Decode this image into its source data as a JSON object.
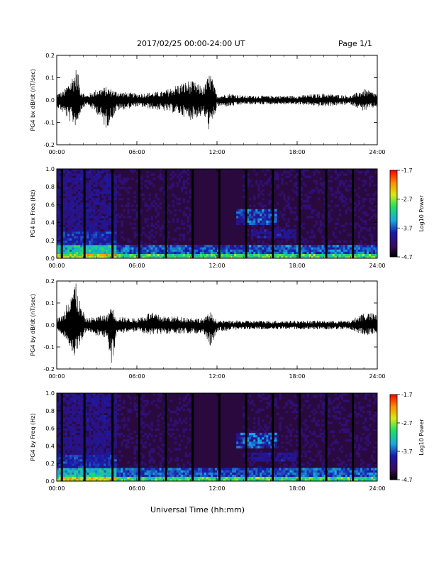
{
  "header": {
    "title": "2017/02/25  00:00-24:00 UT",
    "page": "Page 1/1"
  },
  "footer": {
    "xlabel": "Universal Time (hh:mm)"
  },
  "colors": {
    "line": "#000000",
    "background": "#2a0a3e"
  },
  "chart_data": [
    {
      "type": "line",
      "ylabel": "PG4 bx dB/dt (nT/sec)",
      "xlim": [
        "00:00",
        "24:00"
      ],
      "ylim": [
        -0.2,
        0.2
      ],
      "x_ticks": [
        "00:00",
        "06:00",
        "12:00",
        "18:00",
        "24:00"
      ],
      "y_ticks": [
        "-0.2",
        "-0.1",
        "0.0",
        "0.1",
        "0.2"
      ],
      "envelope": {
        "x_hours": [
          0,
          0.5,
          1,
          1.5,
          1.8,
          2.2,
          3,
          3.7,
          4.5,
          6,
          8,
          9,
          10,
          11,
          11.5,
          12,
          13,
          14,
          16,
          18,
          20,
          22,
          23,
          24
        ],
        "max": [
          0.03,
          0.04,
          0.09,
          0.15,
          0.05,
          0.02,
          0.05,
          0.06,
          0.04,
          0.03,
          0.04,
          0.07,
          0.09,
          0.06,
          0.13,
          0.02,
          0.03,
          0.02,
          0.02,
          0.02,
          0.03,
          0.02,
          0.05,
          0.03
        ],
        "min": [
          -0.03,
          -0.06,
          -0.1,
          -0.12,
          -0.05,
          -0.02,
          -0.06,
          -0.13,
          -0.05,
          -0.03,
          -0.05,
          -0.06,
          -0.09,
          -0.07,
          -0.15,
          -0.03,
          -0.03,
          -0.02,
          -0.02,
          -0.02,
          -0.03,
          -0.02,
          -0.05,
          -0.03
        ]
      }
    },
    {
      "type": "heatmap",
      "ylabel": "PG4 bx Freq (Hz)",
      "xlim": [
        "00:00",
        "24:00"
      ],
      "ylim": [
        0,
        1.0
      ],
      "x_ticks": [
        "00:00",
        "06:00",
        "12:00",
        "18:00",
        "24:00"
      ],
      "y_ticks": [
        "0.0",
        "0.2",
        "0.4",
        "0.6",
        "0.8",
        "1.0"
      ],
      "colorbar": {
        "label": "Log10 Power",
        "ticks": [
          "-1.7",
          "-2.7",
          "-3.7",
          "-4.7"
        ],
        "range": [
          -4.7,
          -1.7
        ]
      },
      "data_gaps_hours": [
        0.3,
        2.0,
        4.1,
        6.1,
        8.1,
        10.1,
        12.1,
        14.1,
        16.1,
        18.1,
        20.1,
        22.1
      ]
    },
    {
      "type": "line",
      "ylabel": "PG4 by dB/dt (nT/sec)",
      "xlim": [
        "00:00",
        "24:00"
      ],
      "ylim": [
        -0.2,
        0.2
      ],
      "x_ticks": [
        "00:00",
        "06:00",
        "12:00",
        "18:00",
        "24:00"
      ],
      "y_ticks": [
        "-0.2",
        "-0.1",
        "0.0",
        "0.1",
        "0.2"
      ],
      "envelope": {
        "x_hours": [
          0,
          0.5,
          1,
          1.4,
          1.8,
          2.2,
          3,
          3.8,
          4.1,
          4.5,
          6,
          7,
          8,
          9,
          11,
          11.5,
          12,
          14,
          16,
          18,
          20,
          22,
          23,
          24
        ],
        "max": [
          0.03,
          0.05,
          0.18,
          0.2,
          0.09,
          0.03,
          0.04,
          0.05,
          0.1,
          0.04,
          0.03,
          0.06,
          0.04,
          0.04,
          0.03,
          0.06,
          0.02,
          0.02,
          0.02,
          0.02,
          0.02,
          0.02,
          0.06,
          0.05
        ],
        "min": [
          -0.03,
          -0.05,
          -0.1,
          -0.17,
          -0.08,
          -0.03,
          -0.05,
          -0.06,
          -0.2,
          -0.04,
          -0.03,
          -0.05,
          -0.04,
          -0.04,
          -0.04,
          -0.1,
          -0.03,
          -0.02,
          -0.02,
          -0.02,
          -0.02,
          -0.02,
          -0.05,
          -0.04
        ]
      }
    },
    {
      "type": "heatmap",
      "ylabel": "PG4 by Freq (Hz)",
      "xlim": [
        "00:00",
        "24:00"
      ],
      "ylim": [
        0,
        1.0
      ],
      "x_ticks": [
        "00:00",
        "06:00",
        "12:00",
        "18:00",
        "24:00"
      ],
      "y_ticks": [
        "0.0",
        "0.2",
        "0.4",
        "0.6",
        "0.8",
        "1.0"
      ],
      "colorbar": {
        "label": "Log10 Power",
        "ticks": [
          "-1.7",
          "-2.7",
          "-3.7",
          "-4.7"
        ],
        "range": [
          -4.7,
          -1.7
        ]
      },
      "data_gaps_hours": [
        0.3,
        2.0,
        4.1,
        6.1,
        8.1,
        10.1,
        12.1,
        14.1,
        16.1,
        18.1,
        20.1,
        22.1
      ]
    }
  ]
}
